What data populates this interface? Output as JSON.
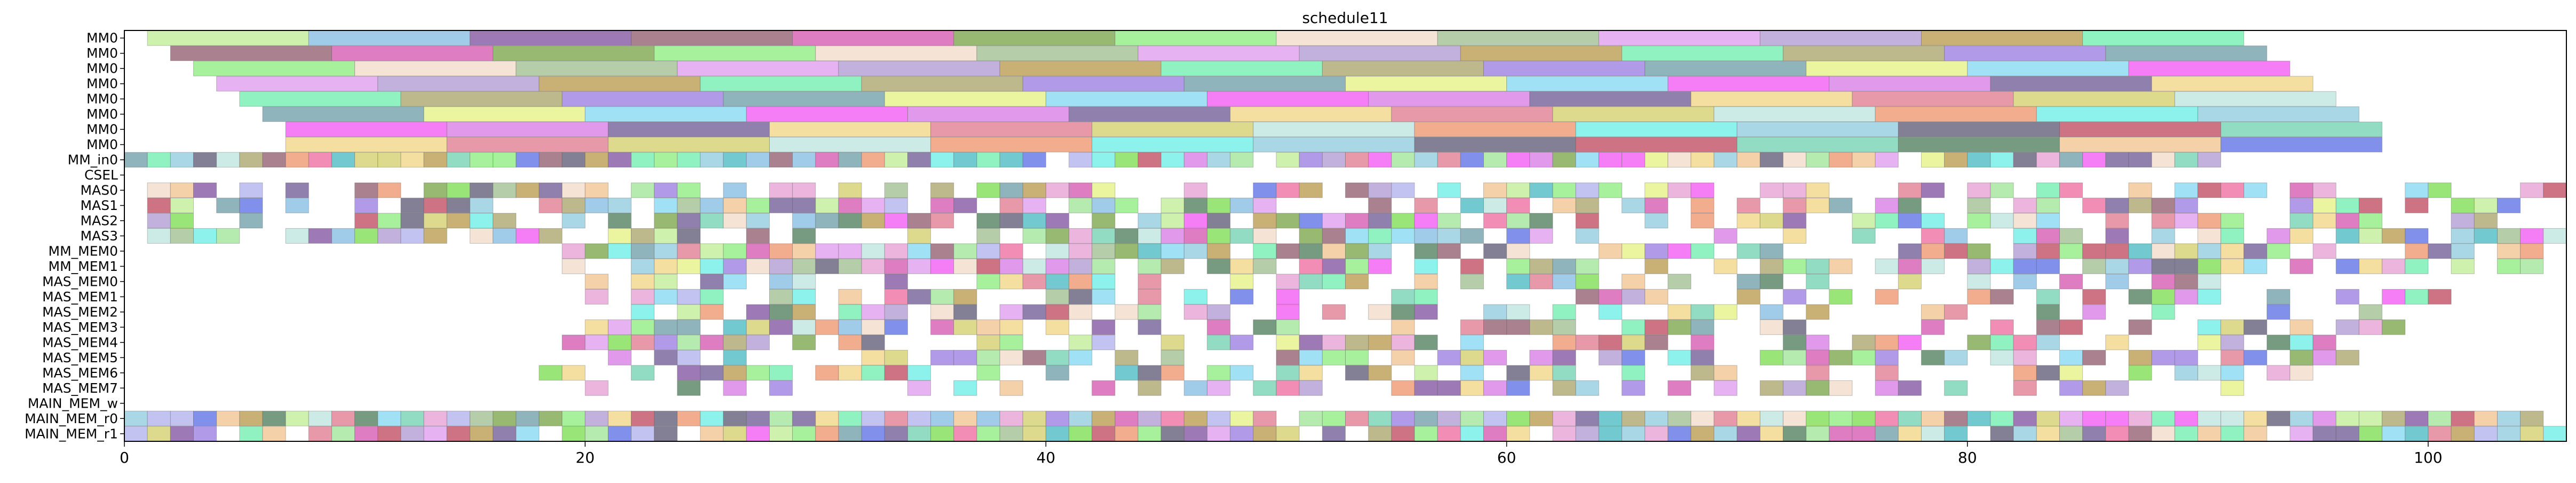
{
  "chart_data": {
    "type": "gantt",
    "title": "schedule11",
    "xlabel": "",
    "ylabel": "",
    "xlim": [
      0,
      106
    ],
    "x_ticks": [
      0,
      20,
      40,
      60,
      80,
      100
    ],
    "grid": false,
    "lanes": [
      "MM0",
      "MM0",
      "MM0",
      "MM0",
      "MM0",
      "MM0",
      "MM0",
      "MM0",
      "MM_in0",
      "CSEL",
      "MAS0",
      "MAS1",
      "MAS2",
      "MAS3",
      "MM_MEM0",
      "MM_MEM1",
      "MAS_MEM0",
      "MAS_MEM1",
      "MAS_MEM2",
      "MAS_MEM3",
      "MAS_MEM4",
      "MAS_MEM5",
      "MAS_MEM6",
      "MAS_MEM7",
      "MAIN_MEM_w",
      "MAIN_MEM_r0",
      "MAIN_MEM_r1"
    ],
    "palette": [
      "#c7eea0",
      "#8fc3e6",
      "#8c62a8",
      "#9b6b7a",
      "#d866b6",
      "#86ad58",
      "#98ef8c",
      "#f3dfcf",
      "#a8c49a",
      "#e2a4ef",
      "#b7a3d6",
      "#c0a35e",
      "#7cf0b6",
      "#b3ad78",
      "#a388e3",
      "#7ba7b0",
      "#e7f38f",
      "#8fdcf5",
      "#f366f3",
      "#dc87e8",
      "#7d6aa0",
      "#f2d88f",
      "#e3879b",
      "#d7d47a",
      "#c3e8e3",
      "#ef9f7a",
      "#78f0e8",
      "#9ad0e0",
      "#6d6a84",
      "#c55a6e",
      "#7fd6b8",
      "#5f8a6a",
      "#f3c99a",
      "#6a7de8",
      "#a8e8a0",
      "#e8a8d8",
      "#5abfc8",
      "#f07aa8",
      "#b8b8f0",
      "#88e060"
    ],
    "long_lanes": [
      {
        "lane": 0,
        "start": 1.0,
        "duration": 7.0,
        "count": 13,
        "gap": 0
      },
      {
        "lane": 1,
        "start": 2.0,
        "duration": 7.0,
        "count": 13,
        "gap": 0
      },
      {
        "lane": 2,
        "start": 3.0,
        "duration": 7.0,
        "count": 13,
        "gap": 0
      },
      {
        "lane": 3,
        "start": 4.0,
        "duration": 7.0,
        "count": 13,
        "gap": 0
      },
      {
        "lane": 4,
        "start": 5.0,
        "duration": 7.0,
        "count": 13,
        "gap": 0
      },
      {
        "lane": 5,
        "start": 6.0,
        "duration": 7.0,
        "count": 13,
        "gap": 0
      },
      {
        "lane": 6,
        "start": 7.0,
        "duration": 7.0,
        "count": 13,
        "gap": 0
      },
      {
        "lane": 7,
        "start": 7.0,
        "duration": 7.0,
        "count": 13,
        "gap": 0
      }
    ],
    "short_lanes": [
      {
        "lane": 8,
        "start": 0.0,
        "end": 91.0,
        "density": 0.95
      },
      {
        "lane": 10,
        "start": 1.0,
        "end": 106.0,
        "density": 0.7
      },
      {
        "lane": 11,
        "start": 1.0,
        "end": 104.0,
        "density": 0.68
      },
      {
        "lane": 12,
        "start": 1.0,
        "end": 103.0,
        "density": 0.66
      },
      {
        "lane": 13,
        "start": 1.0,
        "end": 106.0,
        "density": 0.62
      },
      {
        "lane": 14,
        "start": 19.0,
        "end": 105.0,
        "density": 0.78
      },
      {
        "lane": 15,
        "start": 19.0,
        "end": 105.0,
        "density": 0.74
      },
      {
        "lane": 16,
        "start": 20.0,
        "end": 95.0,
        "density": 0.62
      },
      {
        "lane": 17,
        "start": 19.0,
        "end": 102.0,
        "density": 0.6
      },
      {
        "lane": 18,
        "start": 20.0,
        "end": 98.0,
        "density": 0.55
      },
      {
        "lane": 19,
        "start": 20.0,
        "end": 99.0,
        "density": 0.55
      },
      {
        "lane": 20,
        "start": 19.0,
        "end": 96.0,
        "density": 0.6
      },
      {
        "lane": 21,
        "start": 19.0,
        "end": 97.0,
        "density": 0.62
      },
      {
        "lane": 22,
        "start": 18.0,
        "end": 96.0,
        "density": 0.6
      },
      {
        "lane": 23,
        "start": 20.0,
        "end": 92.0,
        "density": 0.55
      },
      {
        "lane": 25,
        "start": 0.0,
        "end": 106.0,
        "density": 0.97
      },
      {
        "lane": 26,
        "start": 0.0,
        "end": 106.0,
        "density": 0.95
      }
    ]
  }
}
